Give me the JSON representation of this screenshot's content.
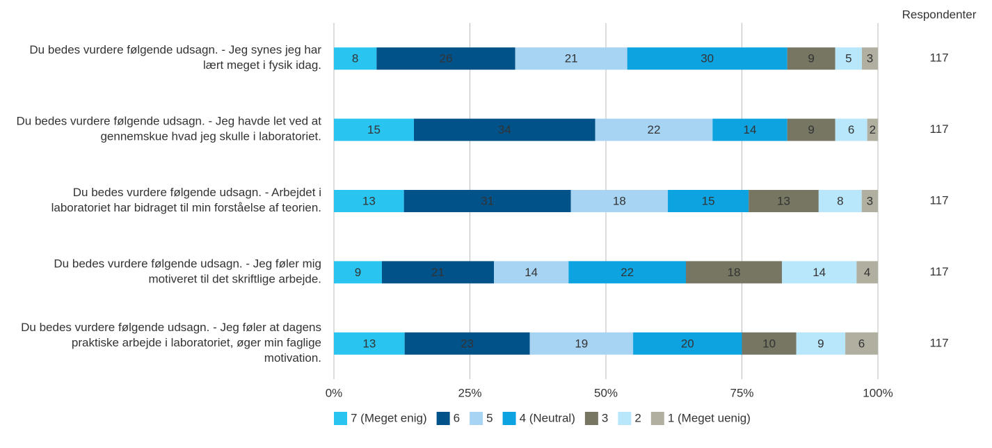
{
  "chart_data": {
    "type": "stacked_bar_100",
    "categories": [
      "Du bedes vurdere følgende udsagn. - Jeg synes jeg har lært meget i fysik idag.",
      "Du bedes vurdere følgende udsagn. - Jeg havde let ved at gennemskue hvad jeg skulle i laboratoriet.",
      "Du bedes vurdere følgende udsagn. - Arbejdet i laboratoriet har bidraget til min forståelse af teorien.",
      "Du bedes vurdere følgende udsagn. - Jeg føler mig motiveret til det skriftlige arbejde.",
      "Du bedes vurdere følgende udsagn. - Jeg føler at dagens praktiske arbejde i laboratoriet, øger min faglige motivation."
    ],
    "series": [
      {
        "name": "7 (Meget enig)",
        "color": "#29c4f0",
        "values": [
          8,
          15,
          13,
          9,
          13
        ]
      },
      {
        "name": "6",
        "color": "#005288",
        "values": [
          26,
          34,
          31,
          21,
          23
        ]
      },
      {
        "name": "5",
        "color": "#a8d4f4",
        "values": [
          21,
          22,
          18,
          14,
          19
        ]
      },
      {
        "name": "4 (Neutral)",
        "color": "#0da2e0",
        "values": [
          30,
          14,
          15,
          22,
          20
        ]
      },
      {
        "name": "3",
        "color": "#767663",
        "values": [
          9,
          9,
          13,
          18,
          10
        ]
      },
      {
        "name": "2",
        "color": "#b8e6fa",
        "values": [
          5,
          6,
          8,
          14,
          9
        ]
      },
      {
        "name": "1 (Meget uenig)",
        "color": "#b0afa0",
        "values": [
          3,
          2,
          3,
          4,
          6
        ]
      }
    ],
    "respondents_label": "Respondenter",
    "respondents": [
      117,
      117,
      117,
      117,
      117
    ],
    "xlim": [
      0,
      100
    ],
    "xticks": [
      {
        "value": 0,
        "label": "0%"
      },
      {
        "value": 25,
        "label": "25%"
      },
      {
        "value": 50,
        "label": "50%"
      },
      {
        "value": 75,
        "label": "75%"
      },
      {
        "value": 100,
        "label": "100%"
      }
    ],
    "grid": true
  }
}
